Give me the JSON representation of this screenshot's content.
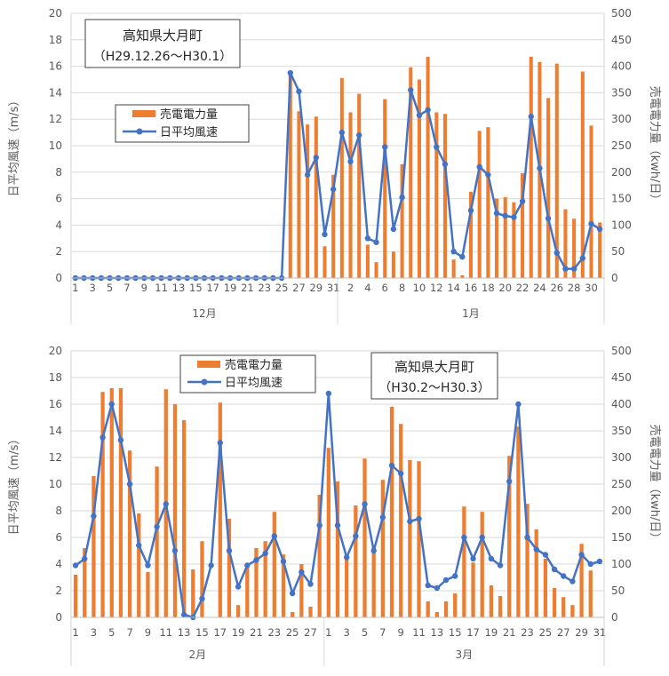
{
  "chart_data": [
    {
      "type": "bar",
      "title_line1": "高知県大月町",
      "title_line2": "（H29.12.26～H30.1）",
      "ylabel_left": "日平均風速（m/s）",
      "ylabel_right": "売電電力量（kwh/日）",
      "ylim_left": [
        0,
        20
      ],
      "ylim_right": [
        0,
        500
      ],
      "left_ticks": [
        "0",
        "2",
        "4",
        "6",
        "8",
        "10",
        "12",
        "14",
        "16",
        "18",
        "20"
      ],
      "right_ticks": [
        "0",
        "50",
        "100",
        "150",
        "200",
        "250",
        "300",
        "350",
        "400",
        "450",
        "500"
      ],
      "legend": {
        "bar": "売電電力量",
        "line": "日平均風速"
      },
      "legend_placement": "top-left",
      "groups": [
        {
          "label": "12月",
          "count": 31
        },
        {
          "label": "1月",
          "count": 31
        }
      ],
      "x_tick_labels": [
        "1",
        "",
        "3",
        "",
        "5",
        "",
        "7",
        "",
        "9",
        "",
        "11",
        "",
        "13",
        "",
        "15",
        "",
        "17",
        "",
        "19",
        "",
        "21",
        "",
        "23",
        "",
        "25",
        "",
        "27",
        "",
        "29",
        "",
        "31",
        "",
        "2",
        "",
        "4",
        "",
        "6",
        "",
        "8",
        "",
        "10",
        "",
        "12",
        "",
        "14",
        "",
        "16",
        "",
        "18",
        "",
        "20",
        "",
        "22",
        "",
        "24",
        "",
        "26",
        "",
        "28",
        "",
        "30",
        ""
      ],
      "series": [
        {
          "name": "売電電力量",
          "kind": "bar",
          "axis": "right",
          "values": [
            0,
            0,
            0,
            0,
            0,
            0,
            0,
            0,
            0,
            0,
            0,
            0,
            0,
            0,
            0,
            0,
            0,
            0,
            0,
            0,
            0,
            0,
            0,
            0,
            0,
            390,
            315,
            290,
            305,
            60,
            195,
            378,
            313,
            348,
            63,
            30,
            338,
            50,
            215,
            398,
            375,
            418,
            313,
            310,
            35,
            5,
            163,
            278,
            285,
            150,
            153,
            143,
            198,
            418,
            408,
            340,
            405,
            130,
            112,
            390,
            288,
            105
          ]
        },
        {
          "name": "日平均風速",
          "kind": "line",
          "axis": "left",
          "values": [
            0,
            0,
            0,
            0,
            0,
            0,
            0,
            0,
            0,
            0,
            0,
            0,
            0,
            0,
            0,
            0,
            0,
            0,
            0,
            0,
            0,
            0,
            0,
            0,
            0,
            15.5,
            14.1,
            7.8,
            9.1,
            3.3,
            6.7,
            11.0,
            8.8,
            10.8,
            3.0,
            2.7,
            9.9,
            3.7,
            6.1,
            14.2,
            12.3,
            12.7,
            9.9,
            8.6,
            2.0,
            1.6,
            5.1,
            8.4,
            7.8,
            4.9,
            4.7,
            4.6,
            5.8,
            12.2,
            8.3,
            4.5,
            1.9,
            0.7,
            0.7,
            1.5,
            4.1,
            3.7
          ]
        }
      ]
    },
    {
      "type": "bar",
      "title_line1": "高知県大月町",
      "title_line2": "（H30.2～H30.3）",
      "ylabel_left": "日平均風速（m/s）",
      "ylabel_right": "売電電力量（kwh/日）",
      "ylim_left": [
        0,
        20
      ],
      "ylim_right": [
        0,
        500
      ],
      "left_ticks": [
        "0",
        "2",
        "4",
        "6",
        "8",
        "10",
        "12",
        "14",
        "16",
        "18",
        "20"
      ],
      "right_ticks": [
        "0",
        "50",
        "100",
        "150",
        "200",
        "250",
        "300",
        "350",
        "400",
        "450",
        "500"
      ],
      "legend": {
        "bar": "売電電力量",
        "line": "日平均風速"
      },
      "legend_placement": "top-center",
      "groups": [
        {
          "label": "2月",
          "count": 28
        },
        {
          "label": "3月",
          "count": 31
        }
      ],
      "x_tick_labels": [
        "1",
        "",
        "3",
        "",
        "5",
        "",
        "7",
        "",
        "9",
        "",
        "11",
        "",
        "13",
        "",
        "15",
        "",
        "17",
        "",
        "19",
        "",
        "21",
        "",
        "23",
        "",
        "25",
        "",
        "27",
        "",
        "1",
        "",
        "3",
        "",
        "5",
        "",
        "7",
        "",
        "9",
        "",
        "11",
        "",
        "13",
        "",
        "15",
        "",
        "17",
        "",
        "19",
        "",
        "21",
        "",
        "23",
        "",
        "25",
        "",
        "27",
        "",
        "29",
        "",
        "31"
      ],
      "series": [
        {
          "name": "売電電力量",
          "kind": "bar",
          "axis": "right",
          "values": [
            80,
            130,
            265,
            423,
            430,
            430,
            313,
            195,
            85,
            283,
            428,
            400,
            370,
            90,
            143,
            0,
            403,
            185,
            23,
            100,
            130,
            143,
            198,
            118,
            10,
            100,
            20,
            230,
            318,
            255,
            110,
            210,
            298,
            133,
            258,
            395,
            363,
            295,
            293,
            30,
            10,
            30,
            45,
            208,
            103,
            198,
            60,
            40,
            303,
            358,
            213,
            165,
            110,
            55,
            38,
            23,
            138,
            88,
            0
          ]
        },
        {
          "name": "日平均風速",
          "kind": "line",
          "axis": "left",
          "values": [
            3.9,
            4.4,
            7.6,
            13.5,
            16.0,
            13.3,
            10.0,
            5.4,
            3.9,
            6.8,
            8.5,
            5.0,
            0.2,
            0.0,
            1.4,
            3.9,
            13.1,
            5.0,
            2.3,
            3.9,
            4.3,
            4.8,
            6.1,
            4.2,
            1.8,
            3.4,
            2.5,
            6.9,
            16.8,
            6.9,
            4.5,
            6.1,
            8.5,
            5.0,
            7.5,
            11.4,
            10.8,
            7.2,
            7.4,
            2.4,
            2.2,
            2.8,
            3.1,
            6.0,
            4.4,
            6.0,
            4.4,
            3.9,
            10.2,
            16.0,
            6.0,
            5.1,
            4.7,
            3.6,
            3.1,
            2.7,
            4.7,
            4.0,
            4.2
          ]
        }
      ]
    }
  ]
}
